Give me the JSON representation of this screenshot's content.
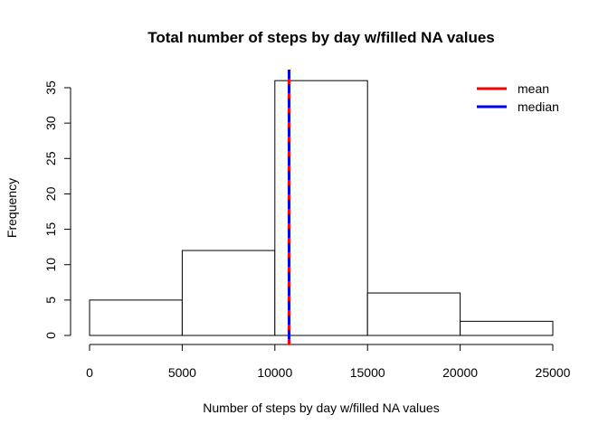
{
  "chart_data": {
    "type": "bar",
    "title": "Total number of steps by day w/filled NA values",
    "xlabel": "Number of steps by day w/filled NA values",
    "ylabel": "Frequency",
    "bins": [
      {
        "from": 0,
        "to": 5000,
        "count": 5
      },
      {
        "from": 5000,
        "to": 10000,
        "count": 12
      },
      {
        "from": 10000,
        "to": 15000,
        "count": 36
      },
      {
        "from": 15000,
        "to": 20000,
        "count": 6
      },
      {
        "from": 20000,
        "to": 25000,
        "count": 2
      }
    ],
    "xlim": [
      0,
      25000
    ],
    "ylim": [
      0,
      36
    ],
    "x_ticks": [
      0,
      5000,
      10000,
      15000,
      20000,
      25000
    ],
    "y_ticks": [
      0,
      5,
      10,
      15,
      20,
      25,
      30,
      35
    ],
    "grid": false,
    "bar_fill": "#ffffff",
    "bar_stroke": "#000000",
    "reference_lines": [
      {
        "name": "mean",
        "value": 10766.19,
        "color": "#ff0000",
        "style": "solid"
      },
      {
        "name": "median",
        "value": 10766.19,
        "color": "#0000ff",
        "style": "dashed"
      }
    ],
    "legend": {
      "placement": "top-right",
      "entries": [
        {
          "label": "mean",
          "color": "#ff0000"
        },
        {
          "label": "median",
          "color": "#0000ff"
        }
      ]
    }
  }
}
